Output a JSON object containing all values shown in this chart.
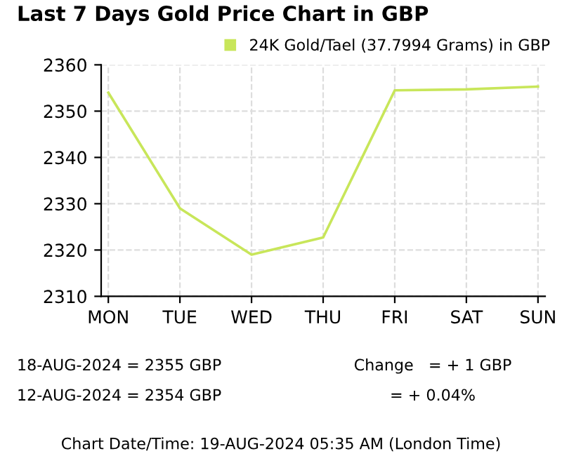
{
  "chart_data": {
    "type": "line",
    "title": "Last 7 Days Gold Price Chart in GBP",
    "categories": [
      "MON",
      "TUE",
      "WED",
      "THU",
      "FRI",
      "SAT",
      "SUN"
    ],
    "series": [
      {
        "name": "24K Gold/Tael (37.7994 Grams) in GBP",
        "color": "#c8e65a",
        "values": [
          2354,
          2329,
          2319,
          2322.7,
          2354.5,
          2354.7,
          2355.3
        ]
      }
    ],
    "ylim": [
      2310,
      2360
    ],
    "yticks": [
      2310,
      2320,
      2330,
      2340,
      2350,
      2360
    ],
    "grid": true,
    "legend": "top right",
    "marker": "none",
    "line_style": "solid",
    "annotations": [
      "18-AUG-2024 = 2355 GBP",
      "12-AUG-2024 = 2354 GBP",
      "Change   = + 1 GBP",
      "= + 0.04%",
      "Chart Date/Time: 19-AUG-2024 05:35 AM (London Time)"
    ]
  }
}
